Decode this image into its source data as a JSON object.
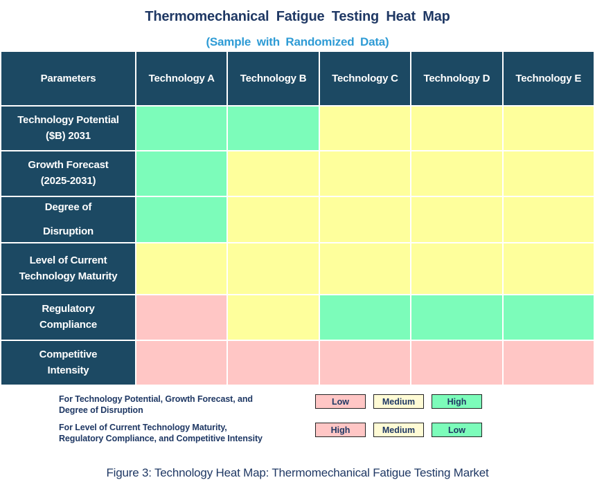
{
  "page": {
    "title": "Thermomechanical Fatigue Testing Heat Map",
    "subtitle": "(Sample with Randomized Data)",
    "caption": "Figure 3: Technology Heat Map: Thermomechanical Fatigue Testing Market"
  },
  "colors": {
    "header_bg": "#1C4963",
    "title_navy": "#1F3864",
    "subtitle_blue": "#2E9BD5",
    "cell_green": "#7CFCBA",
    "cell_yellow": "#FEFF9C",
    "cell_pink": "#FFC6C5",
    "legend_medium_cream": "#FFFBD5",
    "grid_line": "#FFFFFF"
  },
  "chart_data": {
    "type": "heatmap",
    "title": "Thermomechanical Fatigue Testing Heat Map",
    "subtitle": "(Sample with Randomized Data)",
    "columns": [
      "Parameters",
      "Technology A",
      "Technology B",
      "Technology C",
      "Technology D",
      "Technology E"
    ],
    "rows": [
      {
        "label": "Technology Potential ($B) 2031",
        "label_lines": [
          "Technology Potential",
          "($B) 2031"
        ],
        "cell_colors": [
          "green",
          "green",
          "yellow",
          "yellow",
          "yellow"
        ],
        "ratings": [
          "High",
          "High",
          "Medium",
          "Medium",
          "Medium"
        ]
      },
      {
        "label": "Growth Forecast (2025-2031)",
        "label_lines": [
          "Growth Forecast",
          "(2025-2031)"
        ],
        "cell_colors": [
          "green",
          "yellow",
          "yellow",
          "yellow",
          "yellow"
        ],
        "ratings": [
          "High",
          "Medium",
          "Medium",
          "Medium",
          "Medium"
        ]
      },
      {
        "label": "Degree of Disruption",
        "label_lines": [
          "Degree of",
          "Disruption"
        ],
        "wide_gap": true,
        "cell_colors": [
          "green",
          "yellow",
          "yellow",
          "yellow",
          "yellow"
        ],
        "ratings": [
          "High",
          "Medium",
          "Medium",
          "Medium",
          "Medium"
        ]
      },
      {
        "label": "Level of Current Technology Maturity",
        "label_lines": [
          "Level of Current",
          "Technology Maturity"
        ],
        "cell_colors": [
          "yellow",
          "yellow",
          "yellow",
          "yellow",
          "yellow"
        ],
        "ratings": [
          "Medium",
          "Medium",
          "Medium",
          "Medium",
          "Medium"
        ]
      },
      {
        "label": "Regulatory Compliance",
        "label_lines": [
          "Regulatory",
          "Compliance"
        ],
        "cell_colors": [
          "pink",
          "yellow",
          "green",
          "green",
          "green"
        ],
        "ratings": [
          "High",
          "Medium",
          "Low",
          "Low",
          "Low"
        ]
      },
      {
        "label": "Competitive Intensity",
        "label_lines": [
          "Competitive",
          "Intensity"
        ],
        "cell_colors": [
          "pink",
          "pink",
          "pink",
          "pink",
          "pink"
        ],
        "ratings": [
          "High",
          "High",
          "High",
          "High",
          "High"
        ]
      }
    ],
    "legend": [
      {
        "applies_to": "For Technology Potential, Growth Forecast, and Degree of Disruption",
        "text_lines": [
          "For Technology Potential, Growth Forecast, and",
          "Degree of Disruption"
        ],
        "boxes": [
          {
            "label": "Low",
            "color": "pink"
          },
          {
            "label": "Medium",
            "color": "cream"
          },
          {
            "label": "High",
            "color": "green"
          }
        ]
      },
      {
        "applies_to": "For Level of Current Technology Maturity, Regulatory Compliance, and Competitive Intensity",
        "text_lines": [
          "For Level of Current Technology Maturity,",
          "Regulatory Compliance, and Competitive Intensity"
        ],
        "boxes": [
          {
            "label": "High",
            "color": "pink"
          },
          {
            "label": "Medium",
            "color": "cream"
          },
          {
            "label": "Low",
            "color": "green"
          }
        ]
      }
    ]
  }
}
